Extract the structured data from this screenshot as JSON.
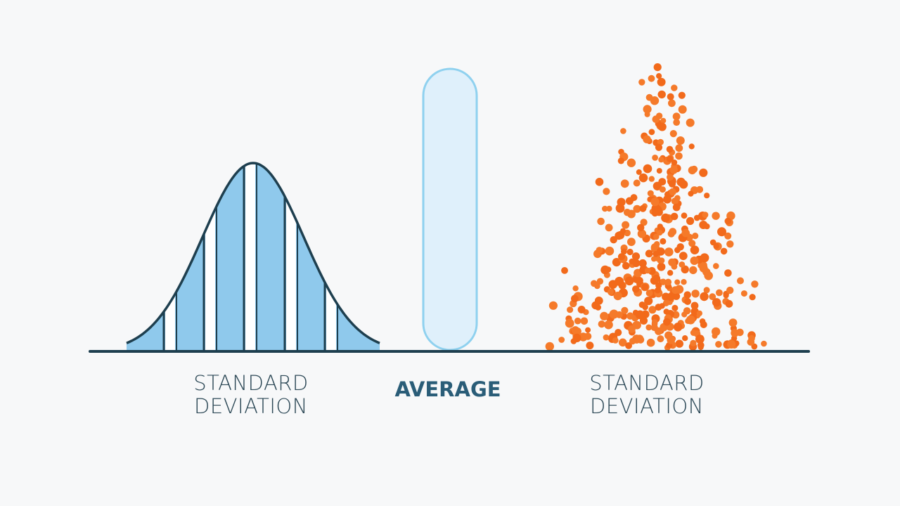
{
  "labels": [
    {
      "lines": [
        "STANDARD",
        "DEVIATION"
      ]
    },
    {
      "lines": [
        "AVERAGE"
      ]
    },
    {
      "lines": [
        "STANDARD",
        "DEVIATION"
      ]
    }
  ]
}
